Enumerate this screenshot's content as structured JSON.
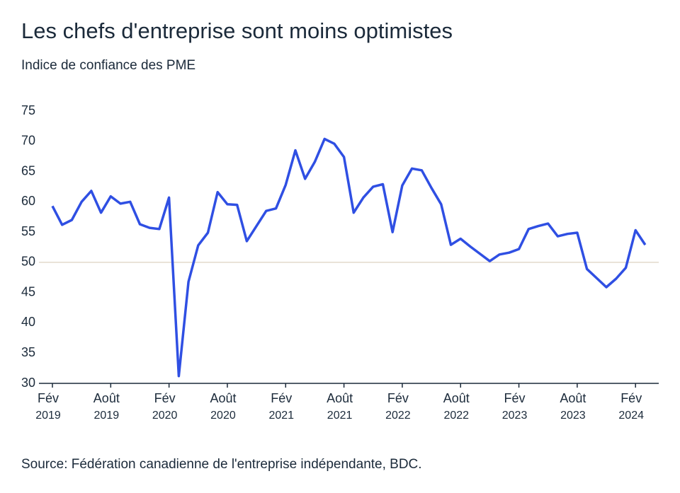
{
  "chart_data": {
    "type": "line",
    "title": "Les chefs d'entreprise sont moins optimistes",
    "subtitle": "Indice de confiance des PME",
    "source": "Source: Fédération canadienne de l'entreprise indépendante, BDC.",
    "x": [
      "2019-02",
      "2019-03",
      "2019-04",
      "2019-05",
      "2019-06",
      "2019-07",
      "2019-08",
      "2019-09",
      "2019-10",
      "2019-11",
      "2019-12",
      "2020-01",
      "2020-02",
      "2020-03",
      "2020-04",
      "2020-05",
      "2020-06",
      "2020-07",
      "2020-08",
      "2020-09",
      "2020-10",
      "2020-11",
      "2020-12",
      "2021-01",
      "2021-02",
      "2021-03",
      "2021-04",
      "2021-05",
      "2021-06",
      "2021-07",
      "2021-08",
      "2021-09",
      "2021-10",
      "2021-11",
      "2021-12",
      "2022-01",
      "2022-02",
      "2022-03",
      "2022-04",
      "2022-05",
      "2022-06",
      "2022-07",
      "2022-08",
      "2022-09",
      "2022-10",
      "2022-11",
      "2022-12",
      "2023-01",
      "2023-02",
      "2023-03",
      "2023-04",
      "2023-05",
      "2023-06",
      "2023-07",
      "2023-08",
      "2023-09",
      "2023-10",
      "2023-11",
      "2023-12",
      "2024-01",
      "2024-02",
      "2024-03"
    ],
    "series": [
      {
        "name": "Indice de confiance des PME",
        "color": "#2f4fe3",
        "values": [
          59.3,
          56.2,
          57.0,
          60.0,
          61.8,
          58.2,
          60.9,
          59.7,
          60.0,
          56.3,
          55.7,
          55.5,
          60.7,
          31.2,
          46.8,
          52.8,
          54.9,
          61.6,
          59.6,
          59.5,
          53.5,
          56.0,
          58.5,
          58.9,
          62.8,
          68.5,
          63.8,
          66.6,
          70.4,
          69.6,
          67.4,
          58.2,
          60.7,
          62.5,
          62.9,
          55.0,
          62.7,
          65.5,
          65.2,
          62.3,
          59.6,
          52.9,
          53.9,
          52.6,
          51.4,
          50.2,
          51.3,
          51.6,
          52.2,
          55.5,
          56.0,
          56.4,
          54.3,
          54.7,
          54.9,
          48.9,
          47.4,
          45.9,
          47.3,
          49.1,
          55.3,
          52.9
        ]
      }
    ],
    "xticks": [
      {
        "value": "2019-02",
        "label": "Fév 2019"
      },
      {
        "value": "2019-08",
        "label": "Août 2019"
      },
      {
        "value": "2020-02",
        "label": "Fév 2020"
      },
      {
        "value": "2020-08",
        "label": "Août 2020"
      },
      {
        "value": "2021-02",
        "label": "Fév 2021"
      },
      {
        "value": "2021-08",
        "label": "Août 2021"
      },
      {
        "value": "2022-02",
        "label": "Fév 2022"
      },
      {
        "value": "2022-08",
        "label": "Août 2022"
      },
      {
        "value": "2023-02",
        "label": "Fév 2023"
      },
      {
        "value": "2023-08",
        "label": "Août 2023"
      },
      {
        "value": "2024-02",
        "label": "Fév 2024"
      }
    ],
    "ylim": [
      30,
      75
    ],
    "yticks": [
      30,
      35,
      40,
      45,
      50,
      55,
      60,
      65,
      70,
      75
    ],
    "reference_line": 50,
    "reference_color": "#e3d9cc",
    "grid": false
  }
}
